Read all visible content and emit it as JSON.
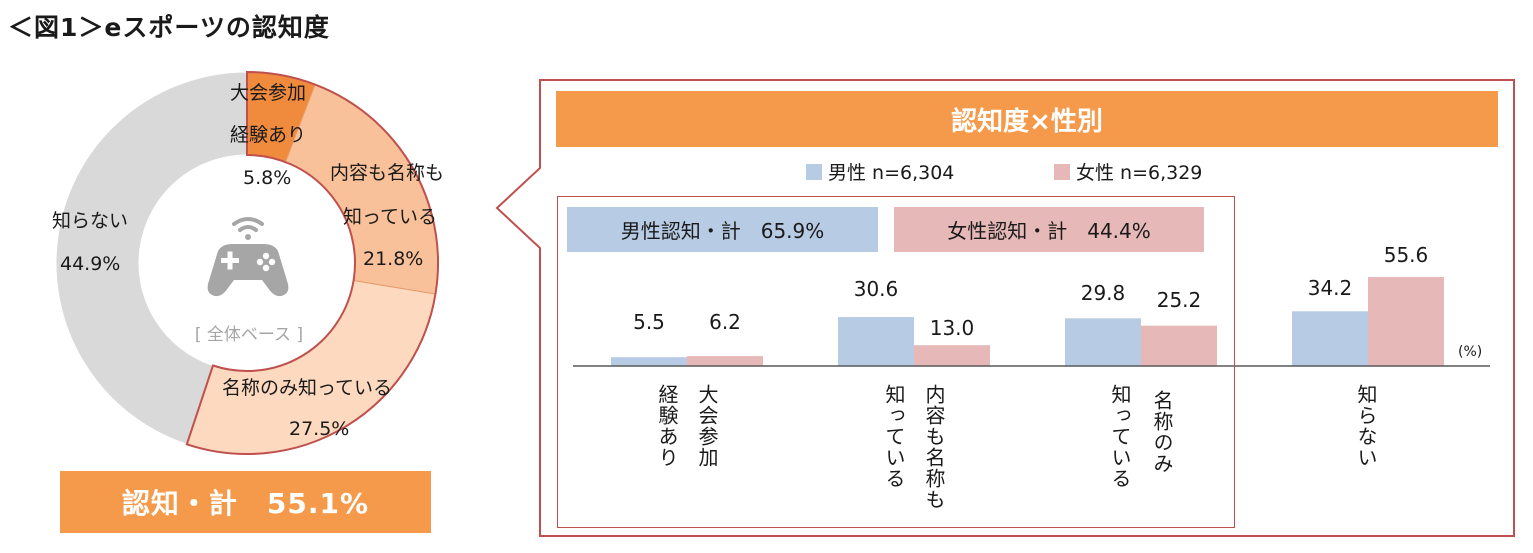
{
  "title": "＜図1＞eスポーツの認知度",
  "donut": {
    "center_label": "[ 全体ベース ]",
    "center_icon": "gamepad-icon",
    "segments": [
      {
        "label_line1": "大会参加",
        "label_line2": "経験あり",
        "value": 5.8,
        "value_text": "5.8%",
        "color": "#f08a3c"
      },
      {
        "label_line1": "内容も名称も",
        "label_line2": "知っている",
        "value": 21.8,
        "value_text": "21.8%",
        "color": "#f9c199"
      },
      {
        "label_line1": "名称のみ知っている",
        "label_line2": "",
        "value": 27.5,
        "value_text": "27.5%",
        "color": "#fcd9bf"
      },
      {
        "label_line1": "知らない",
        "label_line2": "",
        "value": 44.9,
        "value_text": "44.9%",
        "color": "#d9d9d9"
      }
    ],
    "outline_color": "#c0504d",
    "total_text": "認知・計　55.1%"
  },
  "panel": {
    "header": "認知度×性別",
    "legend": [
      {
        "label": "男性 n=6,304",
        "color": "#b7cce4"
      },
      {
        "label": "女性 n=6,329",
        "color": "#e6b8b8"
      }
    ],
    "male_total": "男性認知・計　65.9%",
    "female_total": "女性認知・計　44.4%",
    "unit": "(%)"
  },
  "chart_data": [
    {
      "type": "pie",
      "categories": [
        "大会参加経験あり",
        "内容も名称も知っている",
        "名称のみ知っている",
        "知らない"
      ],
      "values": [
        5.8,
        21.8,
        27.5,
        44.9
      ],
      "title": "",
      "subtitle": "[ 全体ベース ]"
    },
    {
      "type": "bar",
      "title": "認知度×性別",
      "categories": [
        "大会参加経験あり",
        "内容も名称も知っている",
        "名称のみ知っている",
        "知らない"
      ],
      "category_labels": [
        [
          "大会参加",
          "経験あり"
        ],
        [
          "内容も名称も",
          "知っている"
        ],
        [
          "名称のみ",
          "知っている"
        ],
        [
          "知らない"
        ]
      ],
      "series": [
        {
          "name": "男性 n=6,304",
          "values": [
            5.5,
            30.6,
            29.8,
            34.2
          ],
          "labels": [
            "5.5",
            "30.6",
            "29.8",
            "34.2"
          ],
          "color": "#b7cce4"
        },
        {
          "name": "女性 n=6,329",
          "values": [
            6.2,
            13.0,
            25.2,
            55.6
          ],
          "labels": [
            "6.2",
            "13.0",
            "25.2",
            "55.6"
          ],
          "color": "#e6b8b8"
        }
      ],
      "ylabel": "(%)",
      "ylim": [
        0,
        100
      ]
    }
  ]
}
